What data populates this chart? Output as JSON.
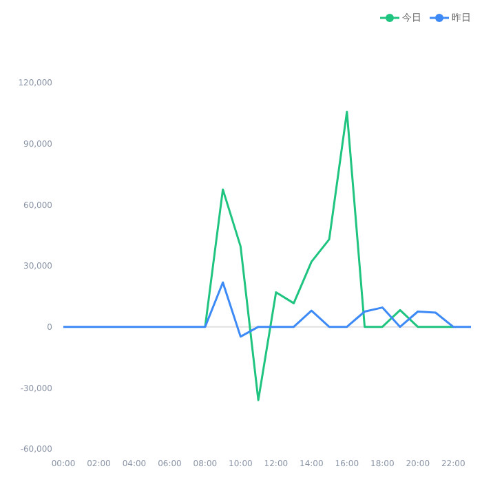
{
  "chart_data": {
    "type": "line",
    "x": [
      0,
      1,
      2,
      3,
      4,
      5,
      6,
      7,
      8,
      9,
      10,
      11,
      12,
      13,
      14,
      15,
      16,
      17,
      18,
      19,
      20,
      21,
      22,
      23
    ],
    "series": [
      {
        "name": "今日",
        "color": "#1ec47f",
        "values": [
          null,
          null,
          null,
          null,
          null,
          null,
          null,
          null,
          0,
          67500,
          39500,
          -36000,
          17000,
          11600,
          32000,
          43000,
          105700,
          0,
          0,
          8200,
          0,
          0,
          0,
          null
        ]
      },
      {
        "name": "昨日",
        "color": "#3d8af7",
        "values": [
          0,
          0,
          0,
          0,
          0,
          0,
          0,
          0,
          0,
          21800,
          -4800,
          0,
          0,
          0,
          8000,
          0,
          0,
          7500,
          9500,
          0,
          7500,
          7000,
          0,
          0
        ]
      }
    ],
    "xlim": [
      0,
      23
    ],
    "xticks": [
      {
        "value": 0,
        "label": "00:00"
      },
      {
        "value": 2,
        "label": "02:00"
      },
      {
        "value": 4,
        "label": "04:00"
      },
      {
        "value": 6,
        "label": "06:00"
      },
      {
        "value": 8,
        "label": "08:00"
      },
      {
        "value": 10,
        "label": "10:00"
      },
      {
        "value": 12,
        "label": "12:00"
      },
      {
        "value": 14,
        "label": "14:00"
      },
      {
        "value": 16,
        "label": "16:00"
      },
      {
        "value": 18,
        "label": "18:00"
      },
      {
        "value": 20,
        "label": "20:00"
      },
      {
        "value": 22,
        "label": "22:00"
      }
    ],
    "ylim": [
      -60000,
      120000
    ],
    "yticks": [
      {
        "value": -60000,
        "label": "-60,000"
      },
      {
        "value": -30000,
        "label": "-30,000"
      },
      {
        "value": 0,
        "label": "0"
      },
      {
        "value": 30000,
        "label": "30,000"
      },
      {
        "value": 60000,
        "label": "60,000"
      },
      {
        "value": 90000,
        "label": "90,000"
      },
      {
        "value": 120000,
        "label": "120,000"
      }
    ],
    "ref_lines": [
      {
        "axis": "y",
        "value": 0,
        "color": "#e0e0e0"
      }
    ],
    "grid": false,
    "legend": "top right",
    "marker": "none",
    "line_style": "solid"
  }
}
